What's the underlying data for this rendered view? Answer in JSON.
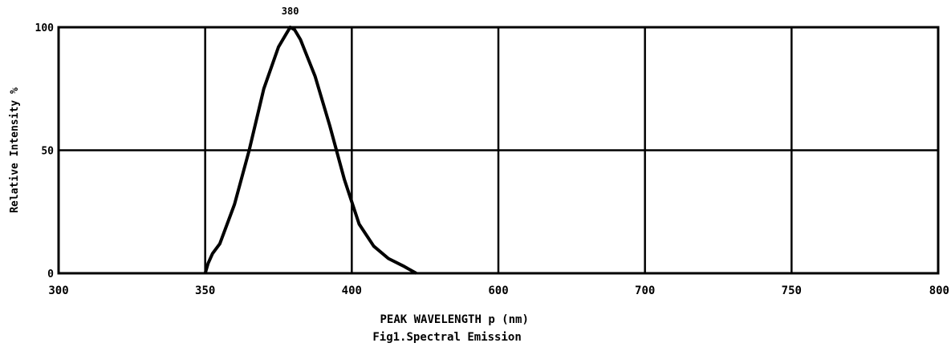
{
  "chart_data": {
    "type": "line",
    "title": "",
    "caption": "Fig1.Spectral Emission",
    "xlabel": "PEAK WAVELENGTH  p (nm)",
    "ylabel": "Relative Intensity %",
    "x_tick_labels": [
      "300",
      "350",
      "400",
      "600",
      "700",
      "750",
      "800"
    ],
    "y_tick_labels": [
      "0",
      "50",
      "100"
    ],
    "ylim": [
      0,
      100
    ],
    "grid": true,
    "legend": "none",
    "peak_label": "380",
    "line_color": "#000000",
    "series": [
      {
        "points": [
          {
            "x": 0.0,
            "y": 0
          },
          {
            "x": 0.02,
            "y": 4
          },
          {
            "x": 0.05,
            "y": 8
          },
          {
            "x": 0.1,
            "y": 12
          },
          {
            "x": 0.2,
            "y": 28
          },
          {
            "x": 0.3,
            "y": 50
          },
          {
            "x": 0.4,
            "y": 75
          },
          {
            "x": 0.5,
            "y": 92
          },
          {
            "x": 0.55,
            "y": 97
          },
          {
            "x": 0.58,
            "y": 100
          },
          {
            "x": 0.61,
            "y": 99
          },
          {
            "x": 0.65,
            "y": 95
          },
          {
            "x": 0.75,
            "y": 80
          },
          {
            "x": 0.85,
            "y": 60
          },
          {
            "x": 0.95,
            "y": 38
          },
          {
            "x": 1.05,
            "y": 20
          },
          {
            "x": 1.15,
            "y": 11
          },
          {
            "x": 1.25,
            "y": 6
          },
          {
            "x": 1.35,
            "y": 3
          },
          {
            "x": 1.44,
            "y": 0
          }
        ]
      }
    ]
  }
}
